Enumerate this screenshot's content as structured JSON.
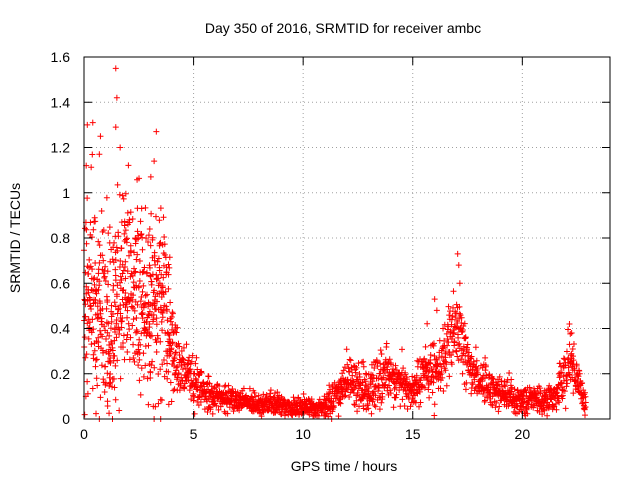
{
  "chart_data": {
    "type": "scatter",
    "title": "Day 350 of 2016, SRMTID for receiver ambc",
    "xlabel": "GPS time / hours",
    "ylabel": "SRMTID / TECUs",
    "xlim": [
      0,
      24
    ],
    "ylim": [
      0,
      1.6
    ],
    "x_ticks": [
      "0",
      "5",
      "10",
      "15",
      "20"
    ],
    "y_ticks": [
      "0",
      "0.2",
      "0.4",
      "0.6",
      "0.8",
      "1",
      "1.2",
      "1.4",
      "1.6"
    ],
    "grid": true,
    "marker": "+",
    "color": "#ff0000",
    "envelope": {
      "x": [
        0,
        0.3,
        0.6,
        1.0,
        1.4,
        1.7,
        2.0,
        2.5,
        3.0,
        3.3,
        3.7,
        4.2,
        5.0,
        6.0,
        7.0,
        8.0,
        9.0,
        10.0,
        11.0,
        11.5,
        12.0,
        12.5,
        13.0,
        13.5,
        14.0,
        14.5,
        15.0,
        15.5,
        16.0,
        16.5,
        17.0,
        17.5,
        18.0,
        18.5,
        19.0,
        19.5,
        20.0,
        20.5,
        21.0,
        21.5,
        22.0,
        22.3,
        22.6,
        22.9
      ],
      "median": [
        0.55,
        0.55,
        0.5,
        0.45,
        0.5,
        0.55,
        0.6,
        0.5,
        0.45,
        0.55,
        0.5,
        0.25,
        0.15,
        0.1,
        0.08,
        0.07,
        0.06,
        0.05,
        0.05,
        0.1,
        0.18,
        0.15,
        0.12,
        0.18,
        0.2,
        0.15,
        0.12,
        0.2,
        0.22,
        0.28,
        0.4,
        0.25,
        0.18,
        0.14,
        0.12,
        0.1,
        0.08,
        0.09,
        0.08,
        0.1,
        0.22,
        0.25,
        0.15,
        0.08
      ],
      "spread": [
        0.35,
        0.4,
        0.35,
        0.3,
        0.3,
        0.3,
        0.3,
        0.3,
        0.28,
        0.3,
        0.25,
        0.12,
        0.08,
        0.05,
        0.04,
        0.04,
        0.04,
        0.04,
        0.04,
        0.07,
        0.08,
        0.08,
        0.08,
        0.09,
        0.08,
        0.08,
        0.07,
        0.1,
        0.1,
        0.12,
        0.15,
        0.1,
        0.08,
        0.07,
        0.06,
        0.05,
        0.05,
        0.05,
        0.05,
        0.05,
        0.1,
        0.1,
        0.08,
        0.05
      ]
    },
    "notable_points": [
      {
        "x": 1.45,
        "y": 1.55
      },
      {
        "x": 1.5,
        "y": 1.42
      },
      {
        "x": 0.15,
        "y": 1.3
      },
      {
        "x": 0.4,
        "y": 1.31
      },
      {
        "x": 1.45,
        "y": 1.29
      },
      {
        "x": 3.3,
        "y": 1.27
      },
      {
        "x": 0.75,
        "y": 1.25
      },
      {
        "x": 1.65,
        "y": 1.2
      },
      {
        "x": 0.7,
        "y": 1.17
      },
      {
        "x": 3.2,
        "y": 1.14
      },
      {
        "x": 0.1,
        "y": 1.12
      },
      {
        "x": 3.05,
        "y": 1.07
      },
      {
        "x": 17.05,
        "y": 0.73
      },
      {
        "x": 17.1,
        "y": 0.68
      },
      {
        "x": 17.15,
        "y": 0.6
      },
      {
        "x": 16.0,
        "y": 0.53
      },
      {
        "x": 16.1,
        "y": 0.48
      },
      {
        "x": 22.15,
        "y": 0.42
      },
      {
        "x": 22.25,
        "y": 0.38
      }
    ],
    "zero_points_x": [
      0.7,
      1.3,
      3.2,
      3.5,
      11.3
    ]
  }
}
